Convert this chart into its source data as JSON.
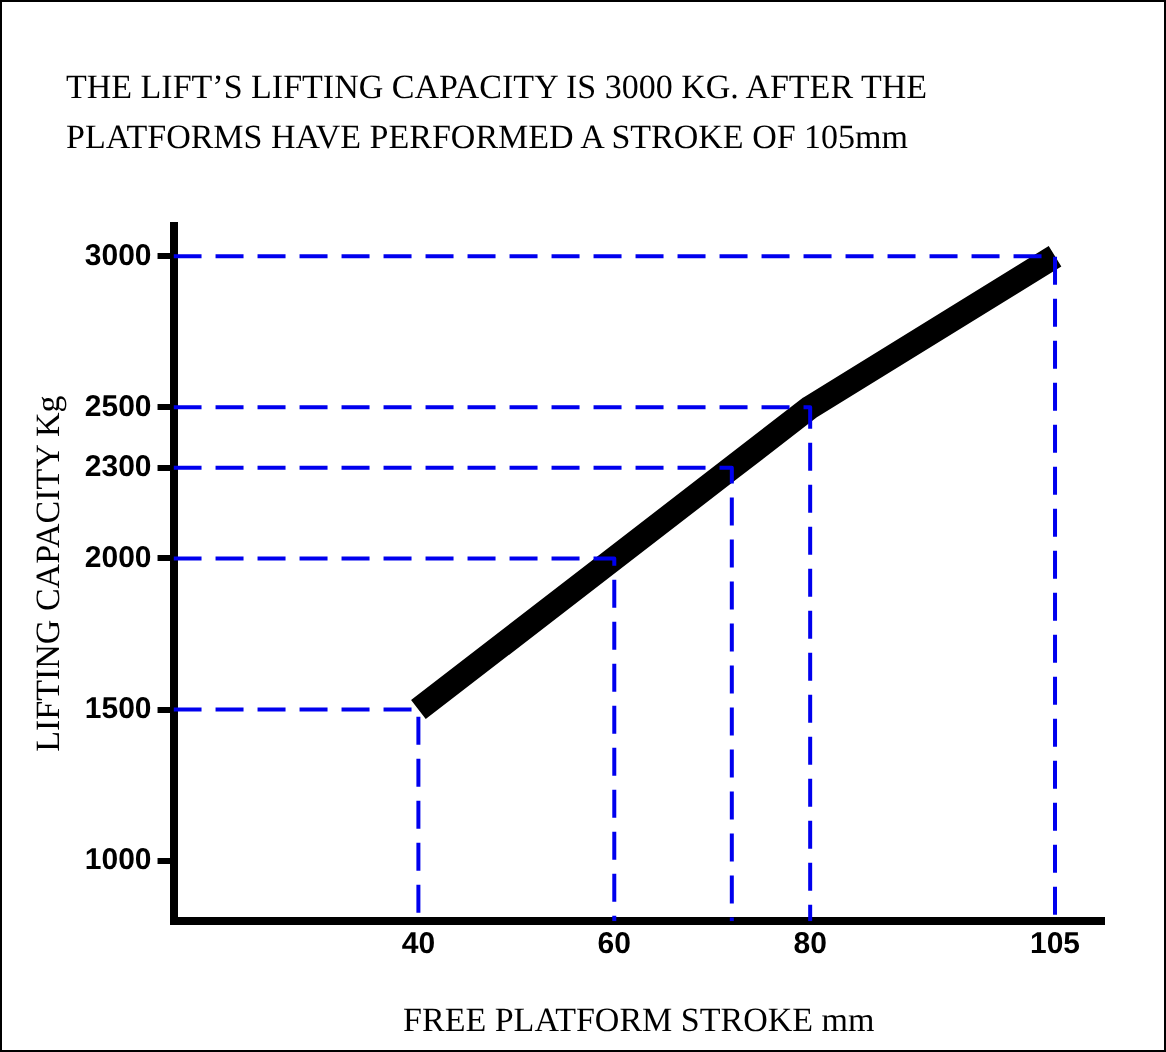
{
  "chart_data": {
    "type": "line",
    "title": "THE LIFT’S LIFTING CAPACITY IS 3000 KG. AFTER THE PLATFORMS HAVE PERFORMED A STROKE OF 105mm",
    "xlabel": "FREE PLATFORM STROKE mm",
    "ylabel": "LIFTING CAPACITY Kg",
    "x": [
      40,
      60,
      72,
      80,
      105
    ],
    "series": [
      {
        "color": "#0000ee",
        "line_style": "dashed",
        "x": [
          15,
          40,
          40
        ],
        "values": [
          1500,
          1500,
          800
        ]
      },
      {
        "color": "#0000ee",
        "line_style": "dashed",
        "x": [
          15,
          60,
          60
        ],
        "values": [
          2000,
          2000,
          800
        ]
      },
      {
        "color": "#0000ee",
        "line_style": "dashed",
        "x": [
          15,
          72,
          72
        ],
        "values": [
          2300,
          2300,
          800
        ]
      },
      {
        "color": "#0000ee",
        "line_style": "dashed",
        "x": [
          15,
          80,
          80
        ],
        "values": [
          2500,
          2500,
          800
        ]
      },
      {
        "color": "#0000ee",
        "line_style": "dashed",
        "x": [
          15,
          105,
          105
        ],
        "values": [
          3000,
          3000,
          800
        ]
      },
      {
        "color": "#000000",
        "values": [
          1500,
          2000,
          2300,
          2500,
          3000
        ]
      }
    ],
    "xlim": [
      15,
      110
    ],
    "xticks": [
      40,
      60,
      80,
      105
    ],
    "ylim": [
      800,
      3100
    ],
    "yticks": [
      1000,
      1500,
      2000,
      2300,
      2500,
      3000
    ],
    "grid": false,
    "legend": false,
    "marker": "none",
    "line_style": "solid"
  }
}
